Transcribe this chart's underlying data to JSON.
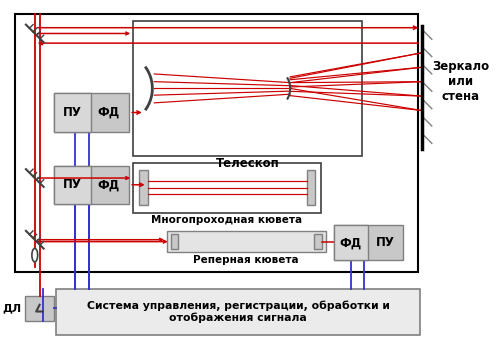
{
  "fig_width": 5.0,
  "fig_height": 3.58,
  "dpi": 100,
  "bg_color": "#ffffff",
  "red": "#cc0000",
  "blue": "#3333cc",
  "black": "#000000",
  "dark_gray": "#404040",
  "med_gray": "#808080",
  "box_gray": "#c8c8c8",
  "box_fill": "#d8d8d8",
  "label_mirror": "Зеркало\nили\nстена",
  "label_telescope": "Телескоп",
  "label_multicell": "Многопроходная кювета",
  "label_refcell": "Реперная кювета",
  "label_system": "Система управления, регистрации, обработки и\nотображения сигнала",
  "label_dl": "ДЛ"
}
